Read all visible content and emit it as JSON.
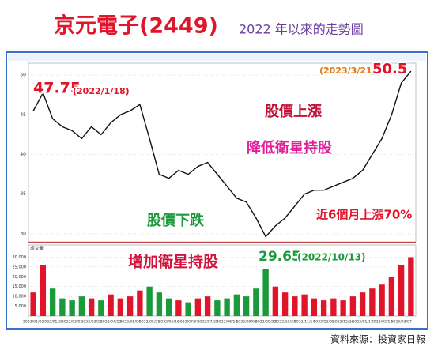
{
  "title": "京元電子(2449)",
  "subtitle": "2022 年以來的走勢圖",
  "source": "資料來源：投資家日報",
  "chart_data": [
    {
      "type": "line",
      "color": "#111111",
      "categories": [
        "2022/01/03",
        null,
        "2022/01/25",
        null,
        "2022/03/01",
        null,
        "2022/03/22",
        null,
        "2022/04/12",
        null,
        "2022/05/04",
        null,
        "2022/05/25",
        null,
        "2022/06/16",
        null,
        "2022/07/07",
        null,
        "2022/07/28",
        null,
        "2022/08/18",
        null,
        "2022/09/08",
        null,
        "2022/09/30",
        null,
        "2022/10/24",
        null,
        "2022/11/14",
        null,
        "2022/12/05",
        null,
        "2022/12/26",
        null,
        "2023/01/17",
        null,
        "2023/02/14",
        null,
        "2023/03/07",
        null
      ],
      "values": [
        45.5,
        47.75,
        44.5,
        43.5,
        43,
        42,
        43.5,
        42.5,
        44,
        45,
        45.5,
        46.3,
        42,
        37.5,
        37,
        38,
        37.5,
        38.5,
        39,
        37.5,
        36,
        34.5,
        34,
        32,
        29.65,
        31,
        32,
        33.5,
        35,
        35.5,
        35.5,
        36,
        36.5,
        37,
        38,
        40,
        42,
        45,
        49,
        50.5
      ],
      "ylim": [
        29,
        51.5
      ],
      "yticks": [
        30,
        35,
        40,
        45,
        50
      ],
      "grid": true,
      "annotations": [
        "47.75",
        "(2022/1/18)",
        "股價上漲",
        "降低衛星持股",
        "股價下跌",
        "增加衛星持股",
        "29.65",
        "(2022/10/13)",
        "(2023/3/21)",
        "50.5",
        "近6個月上漲70%"
      ]
    },
    {
      "type": "bar",
      "title": "成交量",
      "values": [
        12000,
        26000,
        14000,
        9000,
        8000,
        10000,
        9000,
        8000,
        11000,
        9000,
        10000,
        13000,
        15000,
        12000,
        9000,
        8000,
        7000,
        9000,
        10000,
        8000,
        9000,
        11000,
        10000,
        14000,
        24000,
        15000,
        12000,
        10000,
        11000,
        9000,
        8000,
        9000,
        8000,
        10000,
        12000,
        14000,
        16000,
        20000,
        26000,
        30000
      ],
      "ylim": [
        0,
        33000
      ],
      "yticks": [
        {
          "value": 5000,
          "label": "5,000"
        },
        {
          "value": 10000,
          "label": "10,000"
        },
        {
          "value": 15000,
          "label": "15,000"
        },
        {
          "value": 20000,
          "label": "20,000"
        },
        {
          "value": 25000,
          "label": "25,000"
        },
        {
          "value": 30000,
          "label": "30,000"
        }
      ]
    }
  ]
}
